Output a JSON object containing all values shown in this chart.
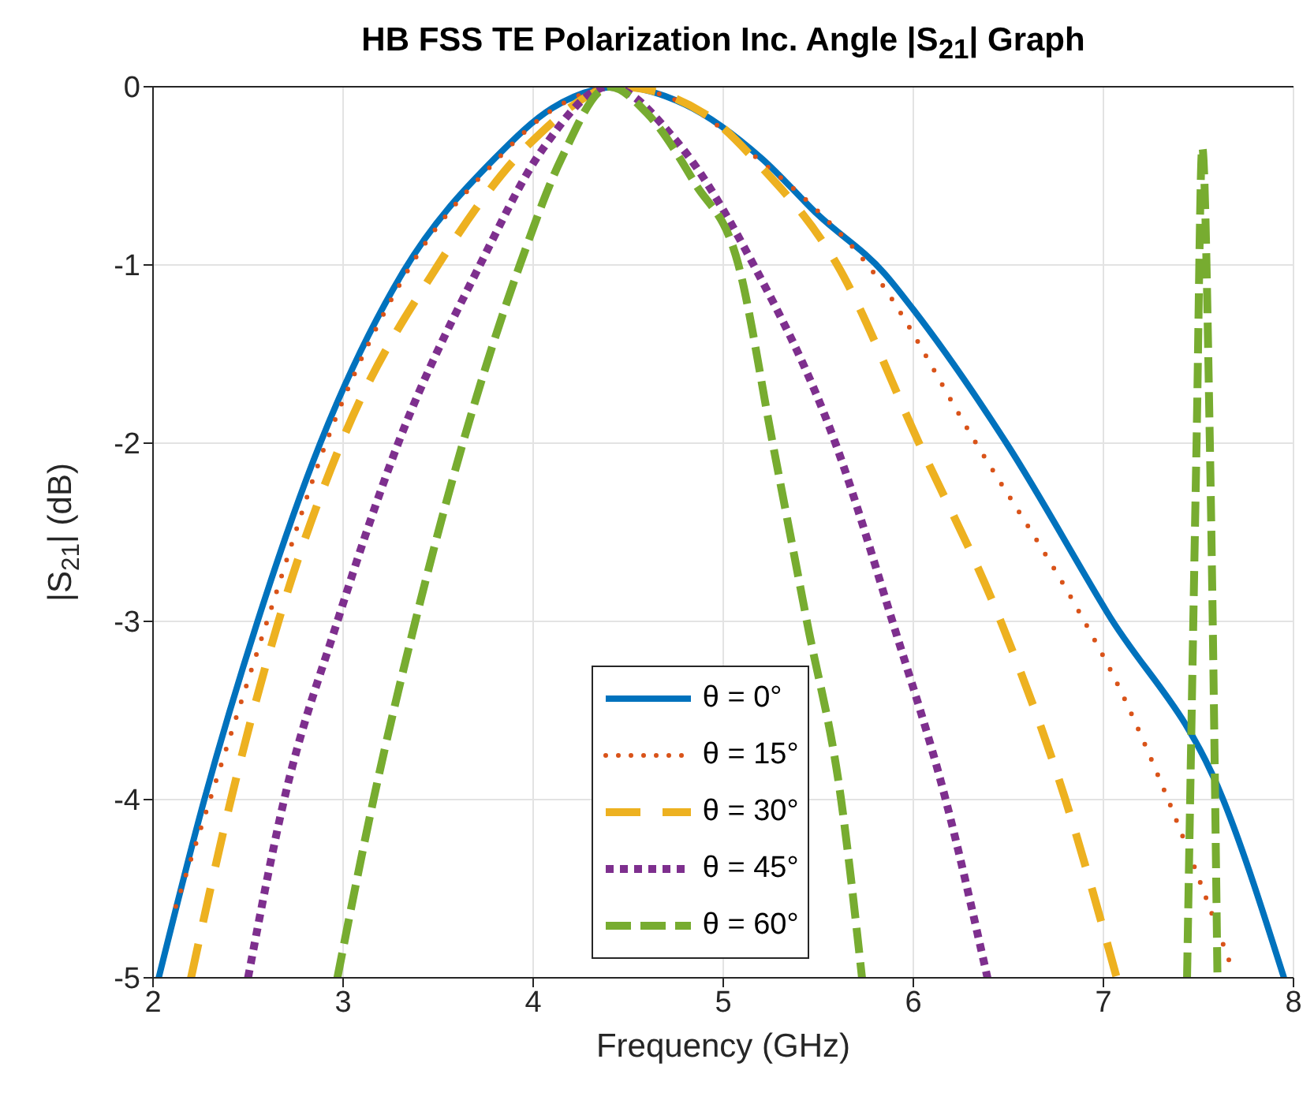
{
  "chart_data": {
    "type": "line",
    "title": "HB FSS TE Polarization Inc. Angle |S$_{21}$| Graph",
    "xlabel": "Frequency (GHz)",
    "ylabel": "|S$_{21}$| (dB)",
    "xlim": [
      2,
      8
    ],
    "xticks": [
      2,
      3,
      4,
      5,
      6,
      7,
      8
    ],
    "ylim": [
      -5,
      0
    ],
    "yticks": [
      -5,
      -4,
      -3,
      -2,
      -1,
      0
    ],
    "grid": true,
    "legend": "bottom",
    "marker": "none",
    "series": [
      {
        "name": "θ = 0°",
        "color": "#0072bd",
        "line_style": "solid",
        "x": [
          2.03,
          2.27,
          2.55,
          2.88,
          3.31,
          3.8,
          4.1,
          4.45,
          4.8,
          5.2,
          5.5,
          5.85,
          6.0,
          6.49,
          7.02,
          7.63,
          7.95
        ],
        "values": [
          -5,
          -4,
          -3,
          -2,
          -1.05,
          -0.4,
          -0.12,
          0,
          -0.1,
          -0.4,
          -0.72,
          -1.05,
          -1.25,
          -2,
          -2.95,
          -4,
          -5
        ]
      },
      {
        "name": "θ = 15°",
        "color": "#d95319",
        "line_style": "dotted",
        "x": [
          2.12,
          2.3,
          2.6,
          2.91,
          3.33,
          3.8,
          4.1,
          4.45,
          4.8,
          5.2,
          5.5,
          5.76,
          6.33,
          6.9,
          7.05,
          7.34,
          7.66
        ],
        "values": [
          -4.6,
          -4,
          -3,
          -2,
          -1.05,
          -0.42,
          -0.13,
          0,
          -0.1,
          -0.42,
          -0.7,
          -1,
          -2,
          -3,
          -3.3,
          -4,
          -4.9
        ]
      },
      {
        "name": "θ = 30°",
        "color": "#edb120",
        "line_style": "dashed",
        "x": [
          2.2,
          2.41,
          2.66,
          2.99,
          3.5,
          4.0,
          4.45,
          4.9,
          5.2,
          5.6,
          6.03,
          6.46,
          6.8,
          7.07
        ],
        "values": [
          -5,
          -4,
          -3,
          -2,
          -1,
          -0.3,
          0,
          -0.15,
          -0.45,
          -1,
          -2,
          -3,
          -4,
          -5
        ]
      },
      {
        "name": "θ = 45°",
        "color": "#7e2f8e",
        "line_style": "dotted",
        "x": [
          2.5,
          2.69,
          2.97,
          3.29,
          3.72,
          4.05,
          4.4,
          4.75,
          5.16,
          5.59,
          5.89,
          6.17,
          6.39
        ],
        "values": [
          -5,
          -4,
          -3,
          -2,
          -1,
          -0.35,
          0,
          -0.3,
          -1,
          -2,
          -3,
          -4,
          -5
        ]
      },
      {
        "name": "θ = 60°",
        "color": "#77ac30",
        "line_style": "dashed",
        "x": [
          2.97,
          3.16,
          3.38,
          3.63,
          3.93,
          4.15,
          4.4,
          4.6,
          4.85,
          5.08,
          5.26,
          5.44,
          5.62,
          5.73,
          6.5,
          7.44,
          7.49,
          7.52,
          7.56,
          7.6
        ],
        "values": [
          -5,
          -4,
          -3,
          -2,
          -1,
          -0.4,
          0,
          -0.15,
          -0.54,
          -1,
          -2,
          -3,
          -4,
          -5,
          null,
          -5,
          -2,
          -0.34,
          -2,
          -5
        ]
      }
    ]
  }
}
